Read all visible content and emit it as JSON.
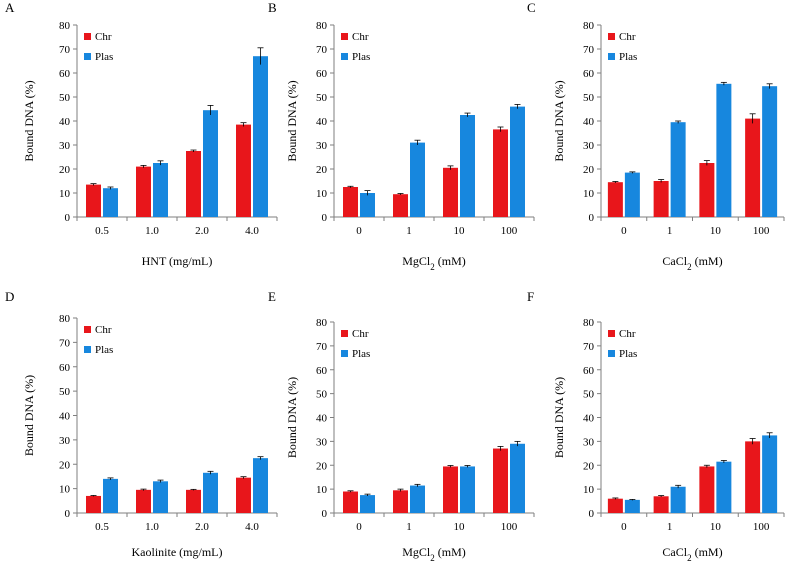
{
  "colors": {
    "chr": "#e8161b",
    "plas": "#1787de",
    "axis": "#7f7f7f",
    "text": "#000000",
    "error_bar": "#000000"
  },
  "chart_data": [
    {
      "panel": "A",
      "type": "bar",
      "categories": [
        "0.5",
        "1.0",
        "2.0",
        "4.0"
      ],
      "series": [
        {
          "name": "Chr",
          "values": [
            13.5,
            21.0,
            27.5,
            38.5
          ],
          "errors": [
            0.4,
            0.5,
            0.4,
            0.8
          ]
        },
        {
          "name": "Plas",
          "values": [
            12.0,
            22.5,
            44.5,
            67.0
          ],
          "errors": [
            0.5,
            0.9,
            2.0,
            3.5
          ]
        }
      ],
      "xlabel_parts": [
        "HNT (mg/mL)"
      ],
      "ylabel": "Bound DNA (%)",
      "ylim": [
        0,
        80
      ],
      "yticks": [
        "0",
        "10",
        "20",
        "30",
        "40",
        "50",
        "60",
        "70",
        "80"
      ],
      "legend": [
        "Chr",
        "Plas"
      ]
    },
    {
      "panel": "B",
      "type": "bar",
      "categories": [
        "0",
        "1",
        "10",
        "100"
      ],
      "series": [
        {
          "name": "Chr",
          "values": [
            12.5,
            9.5,
            20.5,
            36.5
          ],
          "errors": [
            0.3,
            0.3,
            0.8,
            1.0
          ]
        },
        {
          "name": "Plas",
          "values": [
            10.0,
            31.0,
            42.5,
            46.0
          ],
          "errors": [
            1.0,
            1.0,
            0.8,
            0.9
          ]
        }
      ],
      "xlabel_parts": [
        "MgCl",
        "2",
        " (mM)"
      ],
      "ylabel": "Bound DNA (%)",
      "ylim": [
        0,
        80
      ],
      "yticks": [
        "0",
        "10",
        "20",
        "30",
        "40",
        "50",
        "60",
        "70",
        "80"
      ],
      "legend": [
        "Chr",
        "Plas"
      ]
    },
    {
      "panel": "C",
      "type": "bar",
      "categories": [
        "0",
        "1",
        "10",
        "100"
      ],
      "series": [
        {
          "name": "Chr",
          "values": [
            14.5,
            15.0,
            22.5,
            41.0
          ],
          "errors": [
            0.3,
            0.6,
            1.0,
            2.0
          ]
        },
        {
          "name": "Plas",
          "values": [
            18.5,
            39.5,
            55.5,
            54.5
          ],
          "errors": [
            0.3,
            0.5,
            0.6,
            1.0
          ]
        }
      ],
      "xlabel_parts": [
        "CaCl",
        "2",
        " (mM)"
      ],
      "ylabel": "Bound DNA (%)",
      "ylim": [
        0,
        80
      ],
      "yticks": [
        "0",
        "10",
        "20",
        "30",
        "40",
        "50",
        "60",
        "70",
        "80"
      ],
      "legend": [
        "Chr",
        "Plas"
      ]
    },
    {
      "panel": "D",
      "type": "bar",
      "categories": [
        "0.5",
        "1.0",
        "2.0",
        "4.0"
      ],
      "series": [
        {
          "name": "Chr",
          "values": [
            7.0,
            9.5,
            9.5,
            14.5
          ],
          "errors": [
            0.2,
            0.3,
            0.2,
            0.4
          ]
        },
        {
          "name": "Plas",
          "values": [
            14.0,
            13.0,
            16.5,
            22.5
          ],
          "errors": [
            0.4,
            0.5,
            0.6,
            0.6
          ]
        }
      ],
      "xlabel_parts": [
        "Kaolinite (mg/mL)"
      ],
      "ylabel": "Bound DNA (%)",
      "ylim": [
        0,
        80
      ],
      "yticks": [
        "0",
        "10",
        "20",
        "30",
        "40",
        "50",
        "60",
        "70",
        "80"
      ],
      "legend": [
        "Chr",
        "Plas"
      ]
    },
    {
      "panel": "E",
      "type": "bar",
      "categories": [
        "0",
        "1",
        "10",
        "100"
      ],
      "series": [
        {
          "name": "Chr",
          "values": [
            9.0,
            9.5,
            19.5,
            27.0
          ],
          "errors": [
            0.3,
            0.5,
            0.4,
            0.9
          ]
        },
        {
          "name": "Plas",
          "values": [
            7.5,
            11.5,
            19.5,
            29.0
          ],
          "errors": [
            0.4,
            0.5,
            0.4,
            1.0
          ]
        }
      ],
      "xlabel_parts": [
        "MgCl",
        "2",
        " (mM)"
      ],
      "ylabel": "Bound DNA (%)",
      "ylim": [
        0,
        80
      ],
      "yticks": [
        "0",
        "10",
        "20",
        "30",
        "40",
        "50",
        "60",
        "70",
        "80"
      ],
      "legend": [
        "Chr",
        "Plas"
      ]
    },
    {
      "panel": "F",
      "type": "bar",
      "categories": [
        "0",
        "1",
        "10",
        "100"
      ],
      "series": [
        {
          "name": "Chr",
          "values": [
            6.0,
            7.0,
            19.5,
            30.0
          ],
          "errors": [
            0.3,
            0.3,
            0.5,
            1.2
          ]
        },
        {
          "name": "Plas",
          "values": [
            5.5,
            11.0,
            21.5,
            32.5
          ],
          "errors": [
            0.2,
            0.6,
            0.5,
            1.1
          ]
        }
      ],
      "xlabel_parts": [
        "CaCl",
        "2",
        " (mM)"
      ],
      "ylabel": "Bound DNA (%)",
      "ylim": [
        0,
        80
      ],
      "yticks": [
        "0",
        "10",
        "20",
        "30",
        "40",
        "50",
        "60",
        "70",
        "80"
      ],
      "legend": [
        "Chr",
        "Plas"
      ]
    }
  ]
}
